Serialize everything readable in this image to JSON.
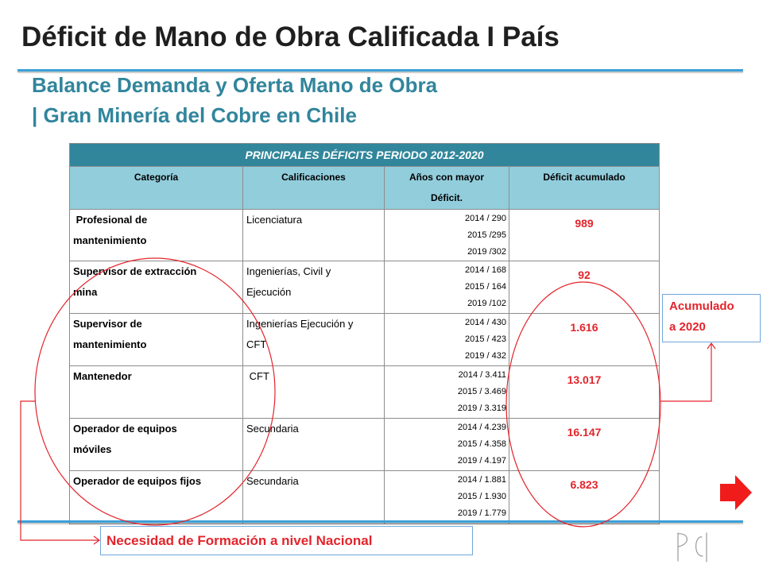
{
  "slide": {
    "title": "Déficit de Mano de Obra Calificada I País",
    "subtitle": {
      "line1": "Balance Demanda y Oferta Mano de Obra",
      "line2": "| Gran Minería del Cobre en Chile"
    }
  },
  "table": {
    "caption": "PRINCIPALES DÉFICITS PERIODO 2012-2020",
    "headers": {
      "categoria": "Categoría",
      "calificaciones": "Calificaciones",
      "anios": "Años con mayor Déficit.",
      "deficit": "Déficit acumulado"
    },
    "rows": [
      {
        "categoria": " Profesional de mantenimiento",
        "calificaciones": "Licenciatura",
        "anios": [
          "2014 / 290",
          "2015 /295",
          "2019 /302"
        ],
        "deficit": "989"
      },
      {
        "categoria": "Supervisor de extracción mina",
        "calificaciones": "Ingenierías, Civil y Ejecución",
        "anios": [
          "2014 / 168",
          "2015 / 164",
          "2019 /102"
        ],
        "deficit": "92"
      },
      {
        "categoria": "Supervisor de mantenimiento",
        "calificaciones": "Ingenierías Ejecución y CFT",
        "anios": [
          "2014 / 430",
          "2015 / 423",
          "2019 / 432"
        ],
        "deficit": "1.616"
      },
      {
        "categoria": "Mantenedor",
        "calificaciones": " CFT",
        "anios": [
          "2014 / 3.411",
          "2015 / 3.469",
          "2019 / 3.319"
        ],
        "deficit": "13.017"
      },
      {
        "categoria": "Operador de equipos móviles",
        "calificaciones": "Secundaria",
        "anios": [
          "2014 / 4.239",
          "2015 / 4.358",
          "2019 / 4.197"
        ],
        "deficit": "16.147"
      },
      {
        "categoria": "Operador de equipos fijos",
        "calificaciones": "Secundaria",
        "anios": [
          "2014 / 1.881",
          "2015 / 1.930",
          "2019 / 1.779"
        ],
        "deficit": "6.823"
      }
    ]
  },
  "callouts": {
    "acumulado": {
      "line1": "Acumulado",
      "line2": "a 2020"
    },
    "necesidad": "Necesidad de Formación a nivel Nacional"
  },
  "logo": {
    "text": "PCI"
  },
  "icons": {
    "next_slide": "arrow-right-icon"
  },
  "colors": {
    "title": "#1f1f1f",
    "subtitle": "#31859c",
    "rule": "#3ba0d8",
    "caption_bg": "#31869b",
    "header_bg": "#92cddc",
    "accent": "#e3242b",
    "callout_border": "#6fa8dc",
    "grid_line": "#8c8c8c",
    "arrow": "#f01c1c",
    "logo": "#9a9a9a"
  }
}
